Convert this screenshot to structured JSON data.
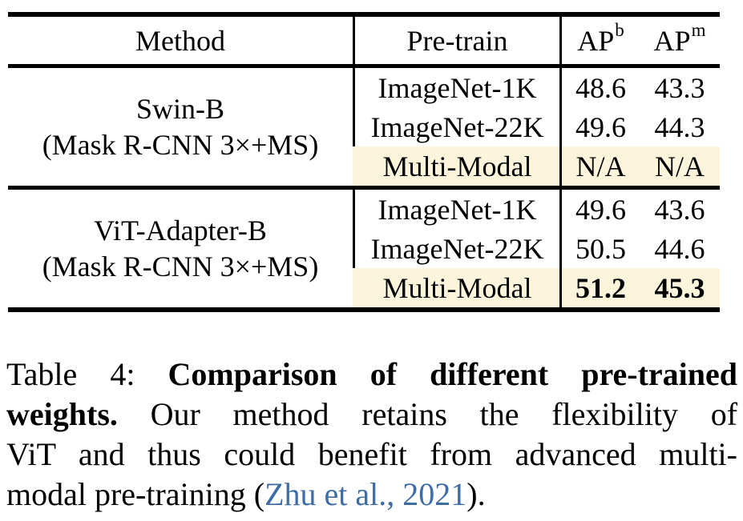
{
  "colors": {
    "highlight_row": "#FCF5DC",
    "citation_link": "#3E6CA4",
    "rule": "#000000",
    "text": "#000000"
  },
  "table": {
    "headers": {
      "method": "Method",
      "pretrain": "Pre-train",
      "ap_b": {
        "base": "AP",
        "sup": "b"
      },
      "ap_m": {
        "base": "AP",
        "sup": "m"
      }
    },
    "groups": [
      {
        "method_line1": "Swin-B",
        "method_line2": "(Mask R-CNN 3×+MS)",
        "rows": [
          {
            "pretrain": "ImageNet-1K",
            "ap_b": "48.6",
            "ap_m": "43.3"
          },
          {
            "pretrain": "ImageNet-22K",
            "ap_b": "49.6",
            "ap_m": "44.3"
          },
          {
            "pretrain": "Multi-Modal",
            "ap_b": "N/A",
            "ap_m": "N/A"
          }
        ]
      },
      {
        "method_line1": "ViT-Adapter-B",
        "method_line2": "(Mask R-CNN 3×+MS)",
        "rows": [
          {
            "pretrain": "ImageNet-1K",
            "ap_b": "49.6",
            "ap_m": "43.6"
          },
          {
            "pretrain": "ImageNet-22K",
            "ap_b": "50.5",
            "ap_m": "44.6"
          },
          {
            "pretrain": "Multi-Modal",
            "ap_b": "51.2",
            "ap_m": "45.3"
          }
        ]
      }
    ]
  },
  "caption": {
    "lines": [
      {
        "label": "Table 4:",
        "bold": "Comparison of different pre-trained"
      },
      {
        "bold": "weights.",
        "text": "Our method retains the flexibility of"
      },
      {
        "text": "ViT and thus could benefit from advanced multi-"
      },
      {
        "text": "modal pre-training (",
        "citation": "Zhu et al., 2021",
        "text_after": ")."
      }
    ]
  }
}
